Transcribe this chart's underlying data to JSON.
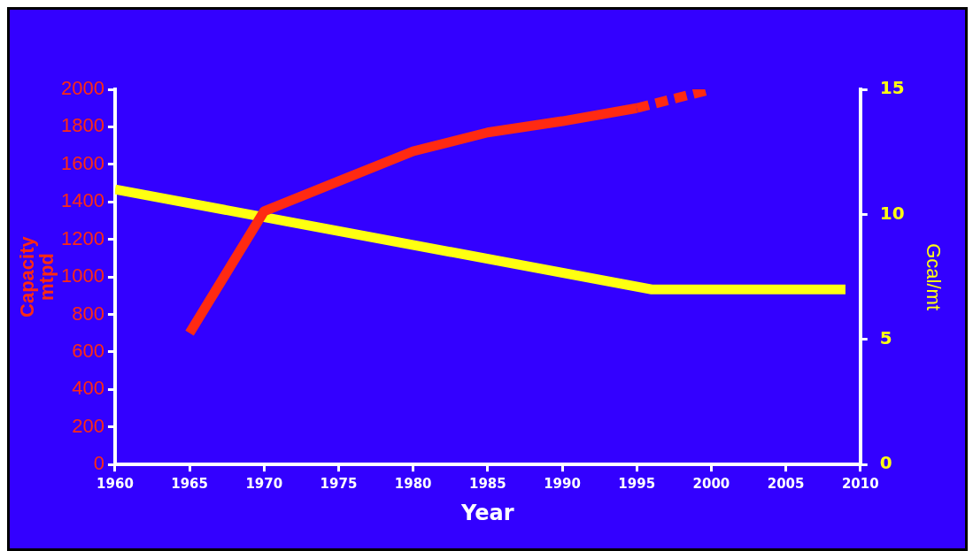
{
  "chart_data": {
    "type": "line",
    "xlabel": "Year",
    "ylabel": "Capacity\nmtpd",
    "y2label": "Gcal/mt",
    "series": [
      {
        "color": "#ff2a12",
        "x": [
          1965,
          1970,
          1975,
          1980,
          1985,
          1990,
          1995
        ],
        "values": [
          700,
          1350,
          1510,
          1670,
          1770,
          1830,
          1900
        ],
        "line_style": "solid"
      },
      {
        "color": "#ff2a12",
        "x": [
          1995,
          2000
        ],
        "values": [
          1900,
          2000
        ],
        "line_style": "dashed"
      },
      {
        "color": "#ffff11",
        "axis": "y2",
        "x": [
          1960,
          1996,
          2009
        ],
        "values": [
          11,
          7,
          7
        ],
        "line_style": "solid"
      }
    ],
    "xlim": [
      1960,
      2010
    ],
    "xticks": [
      1960,
      1965,
      1970,
      1975,
      1980,
      1985,
      1990,
      1995,
      2000,
      2005,
      2010
    ],
    "ylim": [
      0,
      2000
    ],
    "yticks": [
      0,
      200,
      400,
      600,
      800,
      1000,
      1200,
      1400,
      1600,
      1800,
      2000
    ],
    "y2lim": [
      0,
      15
    ],
    "y2ticks": [
      0,
      5,
      10,
      15
    ],
    "grid": false,
    "legend": false,
    "marker": "none"
  }
}
